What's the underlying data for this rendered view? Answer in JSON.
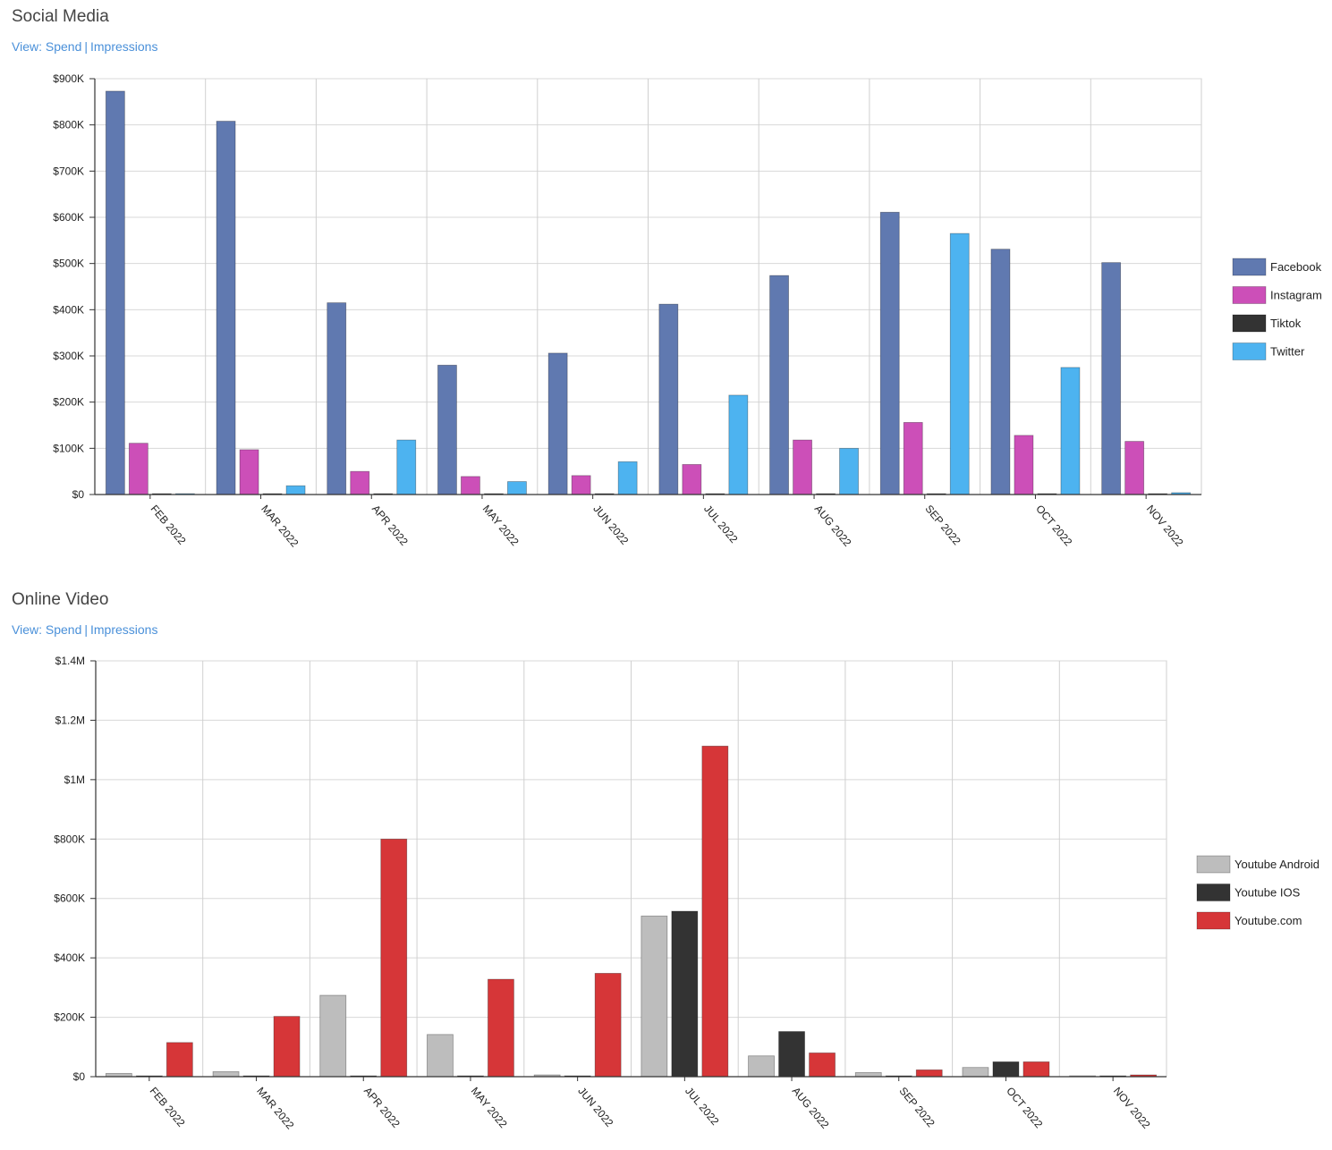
{
  "sections": [
    {
      "title": "Social Media",
      "view_prefix": "View: ",
      "view_spend": "Spend",
      "view_separator": "|",
      "view_impressions": "Impressions"
    },
    {
      "title": "Online Video",
      "view_prefix": "View: ",
      "view_spend": "Spend",
      "view_separator": "|",
      "view_impressions": "Impressions"
    }
  ],
  "chart_data": [
    {
      "type": "bar",
      "title": "Social Media",
      "xlabel": "",
      "ylabel": "",
      "ylim": [
        0,
        900000
      ],
      "y_ticks": [
        0,
        100000,
        200000,
        300000,
        400000,
        500000,
        600000,
        700000,
        800000,
        900000
      ],
      "y_tick_labels": [
        "$0",
        "$100K",
        "$200K",
        "$300K",
        "$400K",
        "$500K",
        "$600K",
        "$700K",
        "$800K",
        "$900K"
      ],
      "categories": [
        "FEB 2022",
        "MAR 2022",
        "APR 2022",
        "MAY 2022",
        "JUN 2022",
        "JUL 2022",
        "AUG 2022",
        "SEP 2022",
        "OCT 2022",
        "NOV 2022"
      ],
      "grid": true,
      "legend_position": "right",
      "series": [
        {
          "name": "Facebook",
          "color": "#6079b0",
          "values": [
            873000,
            808000,
            415000,
            280000,
            306000,
            412000,
            474000,
            611000,
            531000,
            502000
          ]
        },
        {
          "name": "Instagram",
          "color": "#cc4fb8",
          "values": [
            111000,
            97000,
            50000,
            39000,
            41000,
            65000,
            118000,
            156000,
            128000,
            115000
          ]
        },
        {
          "name": "Tiktok",
          "color": "#333333",
          "values": [
            1000,
            0,
            0,
            0,
            0,
            0,
            0,
            0,
            0,
            0
          ]
        },
        {
          "name": "Twitter",
          "color": "#4db3f0",
          "values": [
            0,
            19000,
            118000,
            28000,
            71000,
            215000,
            100000,
            565000,
            275000,
            4000
          ]
        }
      ]
    },
    {
      "type": "bar",
      "title": "Online Video",
      "xlabel": "",
      "ylabel": "",
      "ylim": [
        0,
        1400000
      ],
      "y_ticks": [
        0,
        200000,
        400000,
        600000,
        800000,
        1000000,
        1200000,
        1400000
      ],
      "y_tick_labels": [
        "$0",
        "$200K",
        "$400K",
        "$600K",
        "$800K",
        "$1M",
        "$1.2M",
        "$1.4M"
      ],
      "categories": [
        "FEB 2022",
        "MAR 2022",
        "APR 2022",
        "MAY 2022",
        "JUN 2022",
        "JUL 2022",
        "AUG 2022",
        "SEP 2022",
        "OCT 2022",
        "NOV 2022"
      ],
      "grid": true,
      "legend_position": "right",
      "series": [
        {
          "name": "Youtube Android",
          "color": "#bdbdbd",
          "values": [
            11000,
            17000,
            274000,
            142000,
            6000,
            541000,
            70000,
            14000,
            31000,
            0
          ]
        },
        {
          "name": "Youtube IOS",
          "color": "#333333",
          "values": [
            0,
            0,
            0,
            0,
            0,
            557000,
            152000,
            0,
            50000,
            0
          ]
        },
        {
          "name": "Youtube.com",
          "color": "#d63638",
          "values": [
            115000,
            203000,
            800000,
            328000,
            348000,
            1113000,
            80000,
            23000,
            50000,
            6000
          ]
        }
      ]
    }
  ]
}
